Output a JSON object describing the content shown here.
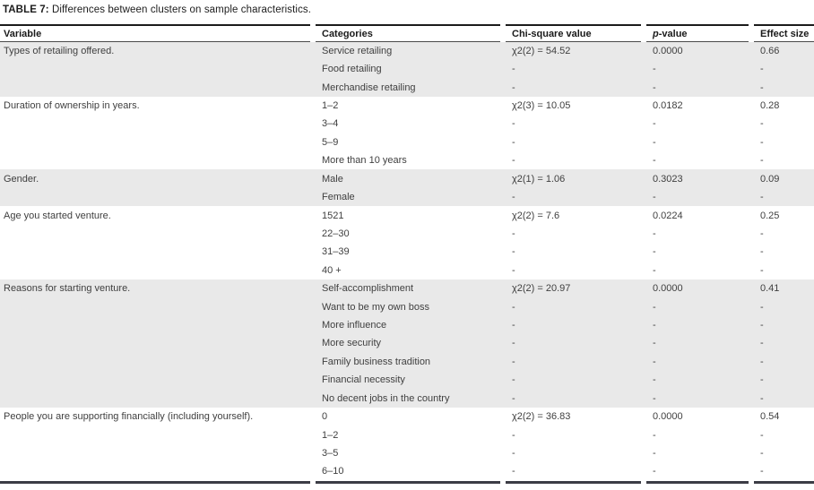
{
  "title": {
    "label": "TABLE 7:",
    "text": " Differences between clusters on sample characteristics."
  },
  "table": {
    "headers": [
      {
        "text": "Variable"
      },
      {
        "text": "Categories"
      },
      {
        "text": "Chi-square value"
      },
      {
        "italic": "p",
        "text": "-value"
      },
      {
        "text": "Effect size"
      }
    ],
    "groups": [
      {
        "variable": "Types of retailing offered.",
        "shaded": true,
        "rows": [
          {
            "category": "Service retailing",
            "chi": "χ2(2) = 54.52",
            "p": "0.0000",
            "effect": "0.66"
          },
          {
            "category": "Food retailing",
            "chi": "-",
            "p": "-",
            "effect": "-"
          },
          {
            "category": "Merchandise retailing",
            "chi": "-",
            "p": "-",
            "effect": "-"
          }
        ]
      },
      {
        "variable": "Duration of ownership in years.",
        "shaded": false,
        "rows": [
          {
            "category": "1–2",
            "chi": "χ2(3) = 10.05",
            "p": "0.0182",
            "effect": "0.28"
          },
          {
            "category": "3–4",
            "chi": "-",
            "p": "-",
            "effect": "-"
          },
          {
            "category": "5–9",
            "chi": "-",
            "p": "-",
            "effect": "-"
          },
          {
            "category": "More than 10 years",
            "chi": "-",
            "p": "-",
            "effect": "-"
          }
        ]
      },
      {
        "variable": "Gender.",
        "shaded": true,
        "rows": [
          {
            "category": "Male",
            "chi": "χ2(1) = 1.06",
            "p": "0.3023",
            "effect": "0.09"
          },
          {
            "category": "Female",
            "chi": "-",
            "p": "-",
            "effect": "-"
          }
        ]
      },
      {
        "variable": "Age you started venture.",
        "shaded": false,
        "rows": [
          {
            "category": "1521",
            "chi": "χ2(2) = 7.6",
            "p": "0.0224",
            "effect": "0.25"
          },
          {
            "category": "22–30",
            "chi": "-",
            "p": "-",
            "effect": "-"
          },
          {
            "category": "31–39",
            "chi": "-",
            "p": "-",
            "effect": "-"
          },
          {
            "category": "40 +",
            "chi": "-",
            "p": "-",
            "effect": "-"
          }
        ]
      },
      {
        "variable": "Reasons for starting venture.",
        "shaded": true,
        "rows": [
          {
            "category": "Self-accomplishment",
            "chi": "χ2(2) = 20.97",
            "p": "0.0000",
            "effect": "0.41"
          },
          {
            "category": "Want to be my own boss",
            "chi": "-",
            "p": "-",
            "effect": "-"
          },
          {
            "category": "More influence",
            "chi": "-",
            "p": "-",
            "effect": "-"
          },
          {
            "category": "More security",
            "chi": "-",
            "p": "-",
            "effect": "-"
          },
          {
            "category": "Family business tradition",
            "chi": "-",
            "p": "-",
            "effect": "-"
          },
          {
            "category": "Financial necessity",
            "chi": "-",
            "p": "-",
            "effect": "-"
          },
          {
            "category": "No decent jobs in the country",
            "chi": "-",
            "p": "-",
            "effect": "-"
          }
        ]
      },
      {
        "variable": "People you are supporting financially (including yourself).",
        "shaded": false,
        "rows": [
          {
            "category": "0",
            "chi": "χ2(2) = 36.83",
            "p": "0.0000",
            "effect": "0.54"
          },
          {
            "category": "1–2",
            "chi": "-",
            "p": "-",
            "effect": "-"
          },
          {
            "category": "3–5",
            "chi": "-",
            "p": "-",
            "effect": "-"
          },
          {
            "category": "6–10",
            "chi": "-",
            "p": "-",
            "effect": "-"
          }
        ]
      }
    ]
  }
}
